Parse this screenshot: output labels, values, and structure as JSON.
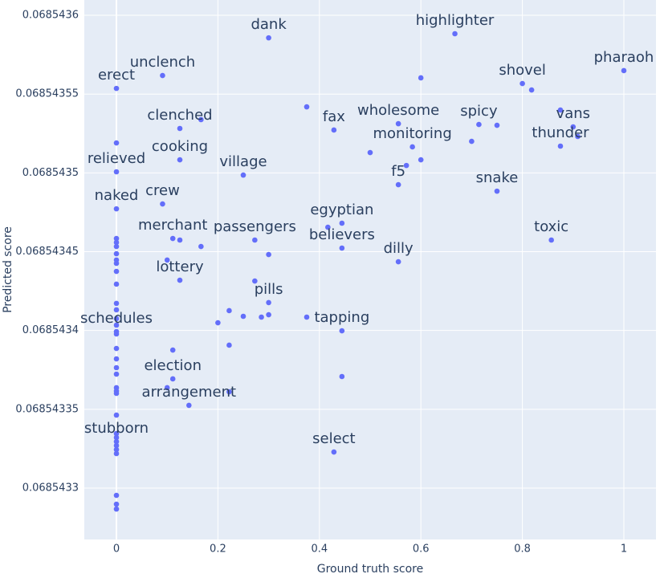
{
  "chart_data": {
    "type": "scatter",
    "x_label": "Ground truth score",
    "y_label": "Predicted score",
    "color": "#636efa",
    "grid": true,
    "xlim": [
      -0.0633,
      1.0633
    ],
    "ylim": [
      0.0685432674,
      0.0685436097
    ],
    "xticks": [
      0,
      0.2,
      0.4,
      0.6,
      0.8,
      1
    ],
    "yticks": [
      0.0685433,
      0.06854335,
      0.0685434,
      0.06854345,
      0.0685435,
      0.06854355,
      0.0685436
    ],
    "x": [
      0.3,
      0.667,
      1,
      0.6,
      0.0909,
      0,
      0.8,
      0.8182,
      0.375,
      0.875,
      0.125,
      0.1667,
      0.4286,
      0.5556,
      0.7143,
      0.75,
      0.9,
      0.9091,
      0.875,
      0.7,
      0,
      0.5833,
      0.5,
      0.125,
      0.6,
      0.5714,
      0.25,
      0,
      0.5556,
      0.75,
      0.0909,
      0,
      0.4444,
      0.4167,
      0.125,
      0.1111,
      0.2727,
      0.8571,
      0.4444,
      0.1667,
      0.3,
      0.5556,
      0.1,
      0.125,
      0.2727,
      0.3,
      0.2222,
      0.25,
      0.2857,
      0.3,
      0.375,
      0.4444,
      0.2,
      0.2222,
      0.1111,
      0.4444,
      0.1111,
      0.1,
      0.1429,
      0.2222,
      0.4286,
      0,
      0,
      0,
      0,
      0,
      0,
      0,
      0,
      0,
      0,
      0,
      0,
      0,
      0,
      0,
      0,
      0,
      0,
      0,
      0,
      0,
      0,
      0,
      0,
      0,
      0,
      0,
      0,
      0,
      0,
      0
    ],
    "y": [
      0.0685435857,
      0.0685435883,
      0.0685435649,
      0.0685435603,
      0.0685435618,
      0.0685435536,
      0.0685435567,
      0.0685435526,
      0.0685435419,
      0.0685435399,
      0.0685435282,
      0.0685435338,
      0.0685435272,
      0.0685435312,
      0.0685435307,
      0.0685435302,
      0.0685435292,
      0.0685435231,
      0.068543517,
      0.06854352,
      0.068543519,
      0.0685435165,
      0.0685435129,
      0.0685435083,
      0.0685435083,
      0.0685435047,
      0.0685434986,
      0.0685435007,
      0.0685434925,
      0.0685434884,
      0.0685434803,
      0.0685434772,
      0.0685434681,
      0.0685434655,
      0.0685434574,
      0.0685434584,
      0.0685434574,
      0.0685434574,
      0.0685434523,
      0.0685434533,
      0.0685434482,
      0.0685434436,
      0.0685434447,
      0.0685434319,
      0.0685434314,
      0.0685434177,
      0.0685434126,
      0.068543409,
      0.0685434085,
      0.06854341,
      0.0685434085,
      0.0685433998,
      0.0685434049,
      0.0685433907,
      0.0685433876,
      0.0685433708,
      0.0685433693,
      0.0685433637,
      0.0685433525,
      0.0685433611,
      0.0685433229,
      0.0685434584,
      0.0685434559,
      0.0685434533,
      0.0685434487,
      0.0685434447,
      0.0685434426,
      0.0685434375,
      0.0685434294,
      0.0685434172,
      0.0685434131,
      0.0685434075,
      0.0685434034,
      0.0685433993,
      0.0685433978,
      0.0685433886,
      0.068543382,
      0.0685433764,
      0.0685433723,
      0.0685433637,
      0.0685433616,
      0.0685433601,
      0.0685433463,
      0.0685433346,
      0.0685433321,
      0.0685433295,
      0.068543327,
      0.0685433244,
      0.0685433219,
      0.0685432954,
      0.0685432898,
      0.0685432867
    ],
    "text": [
      "dank",
      "highlighter",
      "pharaoh",
      null,
      "unclench",
      "erect",
      "shovel",
      null,
      null,
      null,
      "clenched",
      null,
      "fax",
      "wholesome",
      "spicy",
      null,
      "vans",
      null,
      "thunder",
      null,
      null,
      "monitoring",
      null,
      "cooking",
      null,
      null,
      "village",
      "relieved",
      "f5",
      "snake",
      "crew",
      "naked",
      "egyptian",
      null,
      null,
      "merchant",
      "passengers",
      "toxic",
      "believers",
      null,
      null,
      "dilly",
      null,
      "lottery",
      null,
      "pills",
      null,
      null,
      null,
      null,
      null,
      "tapping",
      null,
      null,
      null,
      null,
      "election",
      null,
      "arrangement",
      null,
      "select",
      null,
      null,
      null,
      null,
      null,
      null,
      null,
      null,
      null,
      null,
      null,
      null,
      "schedules",
      null,
      null,
      null,
      null,
      null,
      null,
      null,
      null,
      null,
      null,
      null,
      "stubborn",
      null,
      null,
      null,
      null,
      null,
      null
    ]
  }
}
